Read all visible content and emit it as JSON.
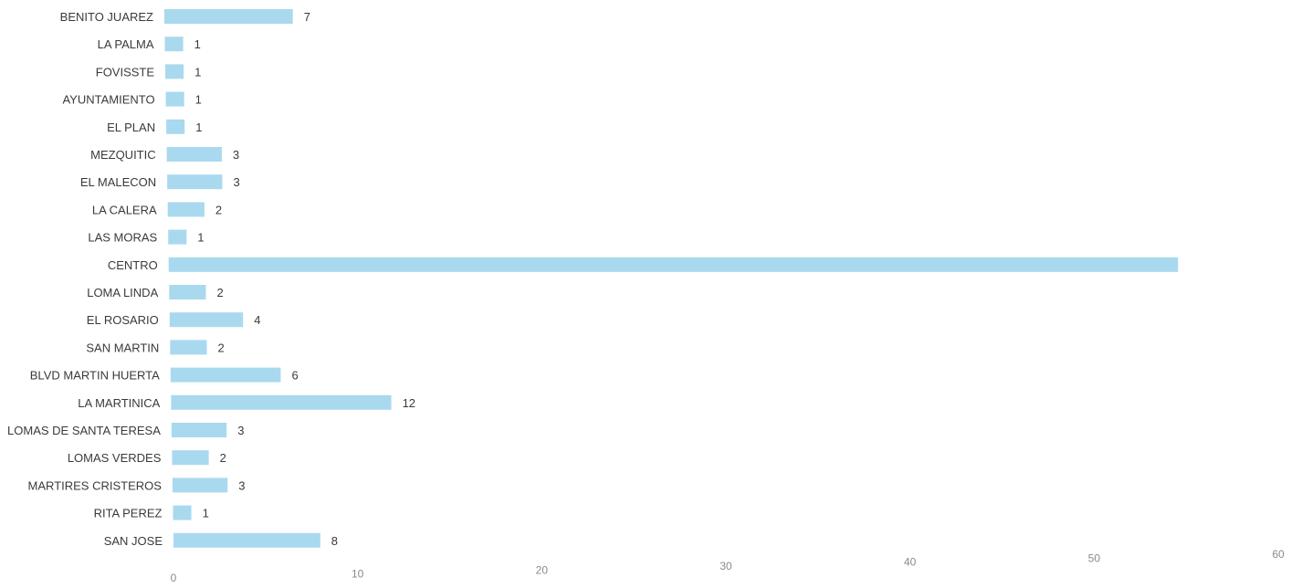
{
  "chart_data": {
    "type": "bar",
    "orientation": "horizontal",
    "categories": [
      "BENITO JUAREZ",
      "LA PALMA",
      "FOVISSTE",
      "AYUNTAMIENTO",
      "EL PLAN",
      "MEZQUITIC",
      "EL MALECON",
      "LA CALERA",
      "LAS MORAS",
      "CENTRO",
      "LOMA LINDA",
      "EL ROSARIO",
      "SAN MARTIN",
      "BLVD MARTIN HUERTA",
      "LA MARTINICA",
      "LOMAS DE SANTA TERESA",
      "LOMAS VERDES",
      "MARTIRES CRISTEROS",
      "RITA PEREZ",
      "SAN JOSE"
    ],
    "values": [
      7,
      1,
      1,
      1,
      1,
      3,
      3,
      2,
      1,
      55,
      2,
      4,
      2,
      6,
      12,
      3,
      2,
      3,
      1,
      8
    ],
    "data_labels": [
      "7",
      "1",
      "1",
      "1",
      "1",
      "3",
      "3",
      "2",
      "1",
      "",
      "2",
      "4",
      "2",
      "6",
      "12",
      "3",
      "2",
      "3",
      "1",
      "8"
    ],
    "x_ticks": [
      0,
      10,
      20,
      30,
      40,
      50,
      60
    ],
    "xlim": [
      0,
      60
    ],
    "grid": false,
    "bar_color": "#a9d9ee",
    "title": "",
    "xlabel": "",
    "ylabel": ""
  }
}
